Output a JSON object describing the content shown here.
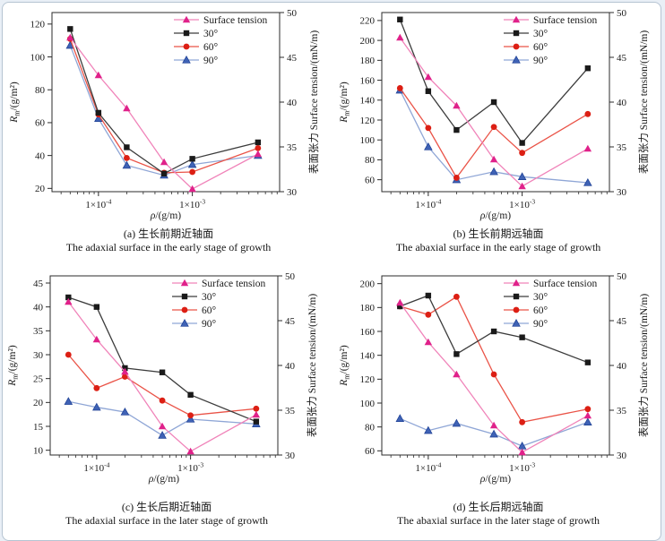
{
  "page": {
    "background_color": "#e9eff6",
    "card_border_color": "#b6c4d2",
    "card_background": "#ffffff"
  },
  "legend": [
    {
      "label": "Surface tension",
      "marker": "triangle",
      "marker_color": "#e0218a",
      "line_color": "#f083b9"
    },
    {
      "label": "30°",
      "marker": "square",
      "marker_color": "#1a1a1a",
      "line_color": "#3c3c3c"
    },
    {
      "label": "60°",
      "marker": "circle",
      "marker_color": "#dc1f14",
      "line_color": "#ea5347"
    },
    {
      "label": "90°",
      "marker": "triangle",
      "marker_color": "#3f62b5",
      "line_color": "#8fa6d6",
      "marker_edge": "#1c3f94"
    }
  ],
  "axes_shared": {
    "xlabel": {
      "sym": "ρ",
      "rest": "/(g/m)"
    },
    "ylabel_left": {
      "base": "R",
      "sub": "m",
      "rest": "/(g/m²)"
    },
    "ylabel_right": "表面张力 Surface tension/(mN/m)",
    "x_scale": "log",
    "x_range": [
      3.2e-05,
      0.0085
    ],
    "x_major_ticks": [
      {
        "value": 0.0001,
        "label": "1×10^-4"
      },
      {
        "value": 0.001,
        "label": "1×10^-3"
      }
    ],
    "right_ticks": [
      30,
      35,
      40,
      45,
      50
    ],
    "right_range": [
      30,
      50
    ],
    "grid": false,
    "legend_position": "top-right-inside",
    "frame_color": "#2b2b2b"
  },
  "chart_data": [
    {
      "id": "a",
      "type": "line",
      "caption_zh": "(a) 生长前期近轴面",
      "caption_en": "The adaxial surface in the early stage of growth",
      "left_ticks": [
        20,
        40,
        60,
        80,
        100,
        120
      ],
      "left_range": [
        18,
        127
      ],
      "x": [
        5e-05,
        0.0001,
        0.0002,
        0.0005,
        0.001,
        0.005
      ],
      "series": [
        {
          "name": "Surface tension",
          "axis": "right",
          "values": [
            47.2,
            43.0,
            39.3,
            33.3,
            30.3,
            34.2
          ]
        },
        {
          "name": "30°",
          "axis": "left",
          "values": [
            117,
            66,
            45,
            29,
            38,
            48
          ]
        },
        {
          "name": "60°",
          "axis": "left",
          "values": [
            111,
            65,
            38.5,
            29.5,
            30,
            44.5
          ]
        },
        {
          "name": "90°",
          "axis": "left",
          "values": [
            107,
            62.5,
            34,
            28,
            34.5,
            40
          ]
        }
      ]
    },
    {
      "id": "b",
      "type": "line",
      "caption_zh": "(b) 生长前期远轴面",
      "caption_en": "The abaxial surface in the early stage of growth",
      "left_ticks": [
        60,
        80,
        100,
        120,
        140,
        160,
        180,
        200,
        220
      ],
      "left_range": [
        48,
        228
      ],
      "x": [
        5e-05,
        0.0001,
        0.0002,
        0.0005,
        0.001,
        0.005
      ],
      "series": [
        {
          "name": "Surface tension",
          "axis": "right",
          "values": [
            47.2,
            42.8,
            39.6,
            33.6,
            30.6,
            34.8
          ]
        },
        {
          "name": "30°",
          "axis": "left",
          "values": [
            221,
            149,
            110,
            138,
            97,
            172
          ]
        },
        {
          "name": "60°",
          "axis": "left",
          "values": [
            152,
            112,
            62,
            113,
            87,
            126
          ]
        },
        {
          "name": "90°",
          "axis": "left",
          "values": [
            150,
            93,
            60,
            68,
            63,
            57
          ]
        }
      ]
    },
    {
      "id": "c",
      "type": "line",
      "caption_zh": "(c) 生长后期近轴面",
      "caption_en": "The adaxial surface in the later stage of growth",
      "left_ticks": [
        10,
        15,
        20,
        25,
        30,
        35,
        40,
        45
      ],
      "left_range": [
        9,
        46.5
      ],
      "x": [
        5e-05,
        0.0001,
        0.0002,
        0.0005,
        0.001,
        0.005
      ],
      "series": [
        {
          "name": "Surface tension",
          "axis": "right",
          "values": [
            47.1,
            42.9,
            39.3,
            33.2,
            30.4,
            34.5
          ]
        },
        {
          "name": "30°",
          "axis": "left",
          "values": [
            42,
            40,
            27.2,
            26.3,
            21.6,
            16
          ]
        },
        {
          "name": "60°",
          "axis": "left",
          "values": [
            30,
            23,
            25.4,
            20.4,
            17.3,
            18.7
          ]
        },
        {
          "name": "90°",
          "axis": "left",
          "values": [
            20.2,
            19,
            18,
            13.1,
            16.5,
            15.5
          ]
        }
      ]
    },
    {
      "id": "d",
      "type": "line",
      "caption_zh": "(d) 生长后期远轴面",
      "caption_en": "The abaxial surface in the later stage of growth",
      "left_ticks": [
        60,
        80,
        100,
        120,
        140,
        160,
        180,
        200
      ],
      "left_range": [
        56.5,
        206.5
      ],
      "x": [
        5e-05,
        0.0001,
        0.0002,
        0.0005,
        0.001,
        0.005
      ],
      "series": [
        {
          "name": "Surface tension",
          "axis": "right",
          "values": [
            47.0,
            42.6,
            39.0,
            33.3,
            30.3,
            34.4
          ]
        },
        {
          "name": "30°",
          "axis": "left",
          "values": [
            181,
            190,
            141,
            160,
            155,
            134
          ]
        },
        {
          "name": "60°",
          "axis": "left",
          "values": [
            181,
            174,
            189,
            124,
            84,
            95
          ]
        },
        {
          "name": "90°",
          "axis": "left",
          "values": [
            87,
            77,
            83,
            74,
            64,
            84
          ]
        }
      ]
    }
  ]
}
